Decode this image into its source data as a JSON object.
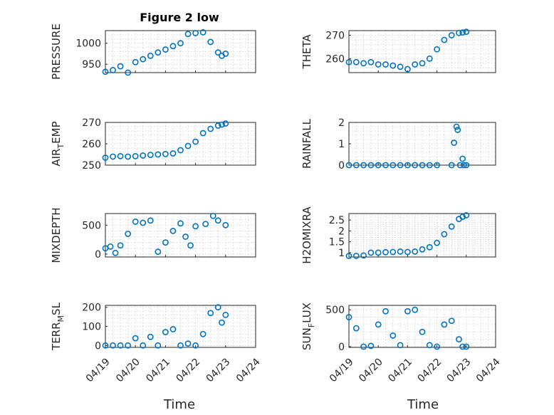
{
  "figure": {
    "title": "Figure 2 low",
    "xlabel": "Time",
    "x_tick_labels": [
      "04/19",
      "04/20",
      "04/21",
      "04/22",
      "04/23",
      "04/24"
    ],
    "marker_color": "#0072BD"
  },
  "chart_data": [
    {
      "type": "scatter",
      "ylabel": "PRESSURE",
      "ylim": [
        930,
        1030
      ],
      "yticks": [
        950,
        1000
      ],
      "ytick_labels": [
        "950",
        "1000"
      ],
      "x_dates": [
        "04/19 00:00",
        "04/19 06:00",
        "04/19 12:00",
        "04/19 18:00",
        "04/20 00:00",
        "04/20 06:00",
        "04/20 12:00",
        "04/20 18:00",
        "04/21 00:00",
        "04/21 06:00",
        "04/21 12:00",
        "04/21 18:00",
        "04/22 00:00",
        "04/22 06:00",
        "04/22 12:00",
        "04/22 18:00",
        "04/22 21:00",
        "04/23 00:00"
      ],
      "y": [
        932,
        936,
        945,
        930,
        955,
        962,
        970,
        978,
        985,
        993,
        1000,
        1022,
        1024,
        1026,
        1003,
        978,
        970,
        975
      ]
    },
    {
      "type": "scatter",
      "ylabel": "THETA",
      "ylim": [
        254,
        272
      ],
      "yticks": [
        260,
        270
      ],
      "ytick_labels": [
        "260",
        "270"
      ],
      "x_dates": [
        "04/19 00:00",
        "04/19 06:00",
        "04/19 12:00",
        "04/19 18:00",
        "04/20 00:00",
        "04/20 06:00",
        "04/20 12:00",
        "04/20 18:00",
        "04/21 00:00",
        "04/21 06:00",
        "04/21 12:00",
        "04/21 18:00",
        "04/22 00:00",
        "04/22 06:00",
        "04/22 12:00",
        "04/22 18:00",
        "04/22 21:00",
        "04/23 00:00"
      ],
      "y": [
        258.5,
        258.5,
        258,
        258.5,
        257.5,
        257.5,
        257,
        256.5,
        255.5,
        257.5,
        258,
        260,
        264,
        268,
        270,
        271,
        271.2,
        271.5
      ]
    },
    {
      "type": "scatter",
      "ylabel": "AIR_TEMP",
      "ylim": [
        250,
        270
      ],
      "yticks": [
        250,
        260,
        270
      ],
      "ytick_labels": [
        "250",
        "260",
        "270"
      ],
      "x_dates": [
        "04/19 00:00",
        "04/19 06:00",
        "04/19 12:00",
        "04/19 18:00",
        "04/20 00:00",
        "04/20 06:00",
        "04/20 12:00",
        "04/20 18:00",
        "04/21 00:00",
        "04/21 06:00",
        "04/21 12:00",
        "04/21 18:00",
        "04/22 00:00",
        "04/22 06:00",
        "04/22 12:00",
        "04/22 18:00",
        "04/22 21:00",
        "04/23 00:00"
      ],
      "y": [
        253.5,
        254,
        254.2,
        254,
        254.2,
        254.5,
        254.8,
        255,
        255.2,
        255.5,
        257,
        259,
        261,
        265,
        267,
        268.5,
        269,
        269.5
      ]
    },
    {
      "type": "scatter",
      "ylabel": "RAINFALL",
      "ylim": [
        0,
        2
      ],
      "yticks": [
        0,
        1,
        2
      ],
      "ytick_labels": [
        "0",
        "1",
        "2"
      ],
      "x_dates": [
        "04/19 00:00",
        "04/19 06:00",
        "04/19 12:00",
        "04/19 18:00",
        "04/20 00:00",
        "04/20 06:00",
        "04/20 12:00",
        "04/20 18:00",
        "04/21 00:00",
        "04/21 06:00",
        "04/21 12:00",
        "04/21 18:00",
        "04/22 00:00",
        "04/22 12:00",
        "04/22 14:00",
        "04/22 16:00",
        "04/22 17:00",
        "04/22 19:00",
        "04/22 21:00",
        "04/22 22:00",
        "04/23 00:00"
      ],
      "y": [
        0,
        0,
        0,
        0,
        0,
        0,
        0,
        0,
        0,
        0,
        0,
        0,
        0,
        0,
        1.05,
        1.8,
        1.65,
        0,
        0.3,
        0,
        0
      ]
    },
    {
      "type": "scatter",
      "ylabel": "MIXDEPTH",
      "ylim": [
        -50,
        700
      ],
      "yticks": [
        0,
        500
      ],
      "ytick_labels": [
        "0",
        "500"
      ],
      "x_dates": [
        "04/19 00:00",
        "04/19 04:00",
        "04/19 08:00",
        "04/19 12:00",
        "04/19 18:00",
        "04/20 00:00",
        "04/20 06:00",
        "04/20 12:00",
        "04/20 18:00",
        "04/21 00:00",
        "04/21 06:00",
        "04/21 12:00",
        "04/21 16:00",
        "04/21 20:00",
        "04/22 00:00",
        "04/22 08:00",
        "04/22 14:00",
        "04/22 18:00",
        "04/23 00:00"
      ],
      "y": [
        100,
        130,
        20,
        150,
        350,
        560,
        540,
        580,
        40,
        200,
        400,
        530,
        300,
        150,
        480,
        520,
        660,
        580,
        500
      ]
    },
    {
      "type": "scatter",
      "ylabel": "H2OMIXRA",
      "ylim": [
        0.8,
        2.8
      ],
      "yticks": [
        1,
        1.5,
        2,
        2.5
      ],
      "ytick_labels": [
        "1",
        "1.5",
        "2",
        "2.5"
      ],
      "x_dates": [
        "04/19 00:00",
        "04/19 06:00",
        "04/19 12:00",
        "04/19 18:00",
        "04/20 00:00",
        "04/20 06:00",
        "04/20 12:00",
        "04/20 18:00",
        "04/21 00:00",
        "04/21 06:00",
        "04/21 12:00",
        "04/21 18:00",
        "04/22 00:00",
        "04/22 06:00",
        "04/22 12:00",
        "04/22 18:00",
        "04/22 21:00",
        "04/23 00:00"
      ],
      "y": [
        0.85,
        0.85,
        0.87,
        1.0,
        1.0,
        1.02,
        1.03,
        1.05,
        1.03,
        1.05,
        1.15,
        1.25,
        1.45,
        1.85,
        2.2,
        2.55,
        2.65,
        2.72
      ]
    },
    {
      "type": "scatter",
      "ylabel": "TERR_MSL",
      "ylim": [
        -10,
        210
      ],
      "yticks": [
        0,
        100,
        200
      ],
      "ytick_labels": [
        "0",
        "100",
        "200"
      ],
      "x_dates": [
        "04/19 00:00",
        "04/19 06:00",
        "04/19 12:00",
        "04/19 18:00",
        "04/20 00:00",
        "04/20 06:00",
        "04/20 12:00",
        "04/20 18:00",
        "04/21 00:00",
        "04/21 06:00",
        "04/21 12:00",
        "04/21 18:00",
        "04/22 00:00",
        "04/22 06:00",
        "04/22 12:00",
        "04/22 18:00",
        "04/22 21:00",
        "04/23 00:00"
      ],
      "y": [
        0,
        0,
        0,
        0,
        38,
        0,
        45,
        0,
        70,
        85,
        0,
        10,
        0,
        60,
        170,
        200,
        120,
        160
      ]
    },
    {
      "type": "scatter",
      "ylabel": "SUN_FLUX",
      "ylim": [
        -10,
        560
      ],
      "yticks": [
        0,
        500
      ],
      "ytick_labels": [
        "0",
        "500"
      ],
      "x_dates": [
        "04/19 00:00",
        "04/19 06:00",
        "04/19 12:00",
        "04/19 18:00",
        "04/20 00:00",
        "04/20 06:00",
        "04/20 12:00",
        "04/20 18:00",
        "04/21 00:00",
        "04/21 06:00",
        "04/21 12:00",
        "04/21 18:00",
        "04/22 00:00",
        "04/22 06:00",
        "04/22 12:00",
        "04/22 18:00",
        "04/22 21:00",
        "04/23 00:00"
      ],
      "y": [
        400,
        250,
        0,
        10,
        300,
        480,
        150,
        20,
        480,
        500,
        200,
        20,
        0,
        300,
        350,
        100,
        0,
        0
      ]
    }
  ]
}
